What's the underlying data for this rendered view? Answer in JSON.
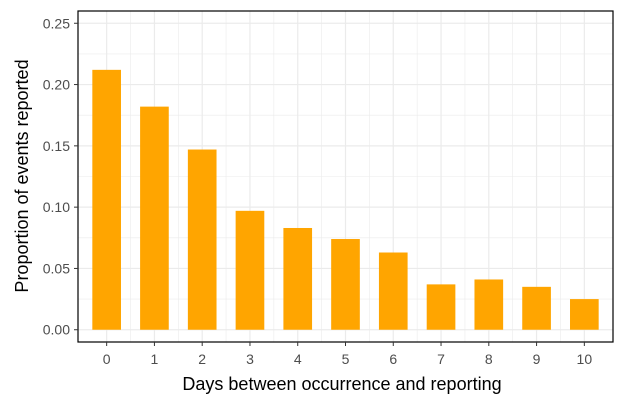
{
  "chart_data": {
    "type": "bar",
    "title": "",
    "xlabel": "Days between occurrence and reporting",
    "ylabel": "Proportion of events reported",
    "categories": [
      "0",
      "1",
      "2",
      "3",
      "4",
      "5",
      "6",
      "7",
      "8",
      "9",
      "10"
    ],
    "values": [
      0.212,
      0.182,
      0.147,
      0.097,
      0.083,
      0.074,
      0.063,
      0.037,
      0.041,
      0.035,
      0.025
    ],
    "ylim": [
      -0.01,
      0.26
    ],
    "yticks": [
      0.0,
      0.05,
      0.1,
      0.15,
      0.2,
      0.25
    ],
    "ytick_labels": [
      "0.00",
      "0.05",
      "0.10",
      "0.15",
      "0.20",
      "0.25"
    ],
    "grid": true,
    "legend": "none",
    "colors": {
      "bar": "#FFA500",
      "grid": "#EBEBEB",
      "panel_border": "#000000",
      "background": "#FFFFFF"
    }
  }
}
